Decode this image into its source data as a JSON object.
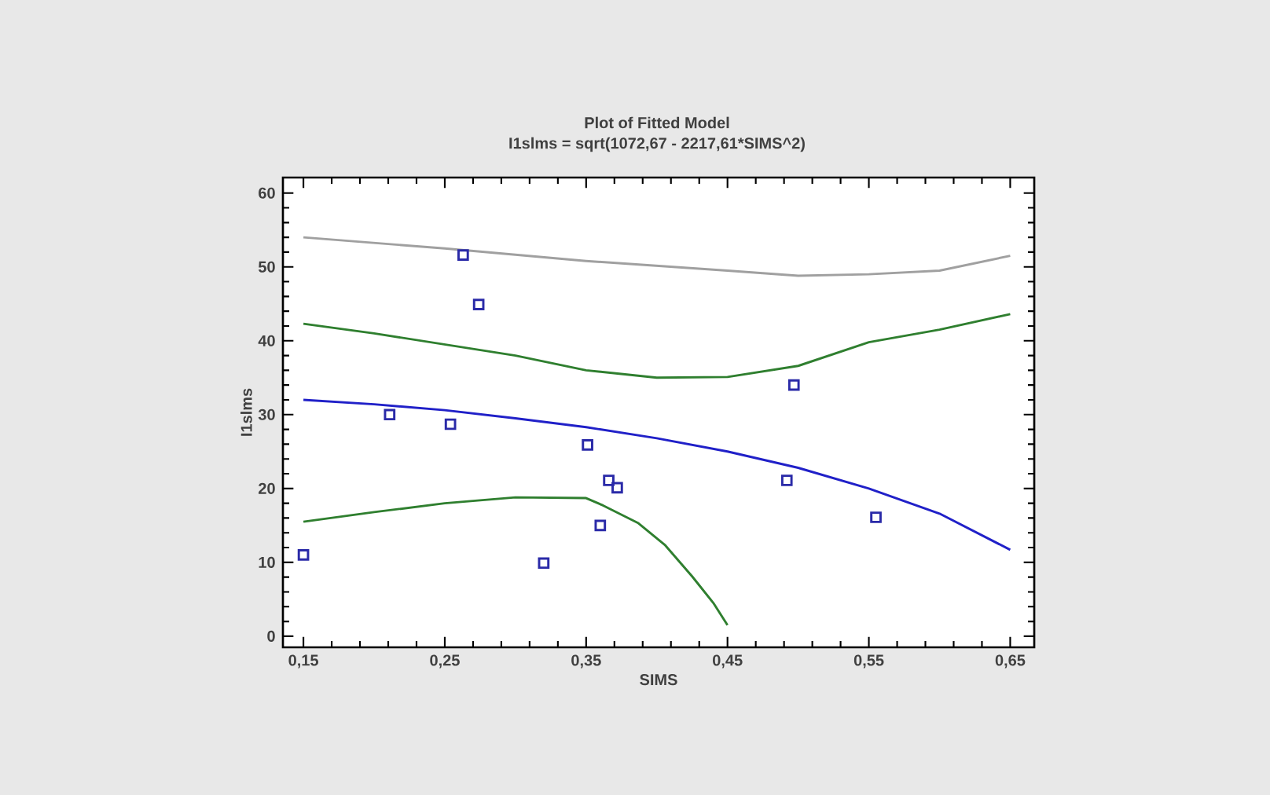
{
  "chart_data": {
    "type": "scatter",
    "title": "Plot of Fitted Model",
    "subtitle": "I1slms = sqrt(1072,67 - 2217,61*SIMS^2)",
    "xlabel": "SIMS",
    "ylabel": "I1slms",
    "xlim": [
      0.1355,
      0.667
    ],
    "ylim": [
      -1.5,
      62.1
    ],
    "xticks": [
      {
        "value": 0.15,
        "label": "0,15"
      },
      {
        "value": 0.25,
        "label": "0,25"
      },
      {
        "value": 0.35,
        "label": "0,35"
      },
      {
        "value": 0.45,
        "label": "0,45"
      },
      {
        "value": 0.55,
        "label": "0,55"
      },
      {
        "value": 0.65,
        "label": "0,65"
      }
    ],
    "yticks": [
      0,
      10,
      20,
      30,
      40,
      50,
      60
    ],
    "grid": false,
    "series": [
      {
        "marker": "square",
        "color": "#2a2aa8",
        "x": [
          0.15,
          0.211,
          0.254,
          0.263,
          0.274,
          0.32,
          0.351,
          0.36,
          0.366,
          0.372,
          0.492,
          0.497,
          0.555
        ],
        "values": [
          11.0,
          30.0,
          28.7,
          51.6,
          44.9,
          9.9,
          25.9,
          15.0,
          21.1,
          20.1,
          21.1,
          34.0,
          16.1
        ]
      },
      {
        "type": "line",
        "color": "#2020c8",
        "x": [
          0.15,
          0.2,
          0.25,
          0.3,
          0.35,
          0.4,
          0.45,
          0.5,
          0.55,
          0.6,
          0.65
        ],
        "values": [
          32.0,
          31.4,
          30.6,
          29.5,
          28.3,
          26.8,
          25.0,
          22.8,
          20.0,
          16.6,
          11.7
        ]
      },
      {
        "type": "line",
        "color": "#2f7f2f",
        "x": [
          0.15,
          0.2,
          0.25,
          0.3,
          0.35,
          0.4,
          0.45,
          0.5,
          0.55,
          0.6,
          0.65
        ],
        "values": [
          42.3,
          41.0,
          39.5,
          38.0,
          36.0,
          35.0,
          35.1,
          36.6,
          39.8,
          41.5,
          43.6
        ]
      },
      {
        "type": "line",
        "color": "#2f7f2f",
        "x": [
          0.15,
          0.2,
          0.25,
          0.3,
          0.35,
          0.362,
          0.387,
          0.406,
          0.425,
          0.44,
          0.45
        ],
        "values": [
          15.5,
          16.8,
          18.0,
          18.8,
          18.7,
          17.7,
          15.3,
          12.3,
          8.1,
          4.5,
          1.5
        ]
      },
      {
        "type": "line",
        "color": "#a0a0a0",
        "x": [
          0.15,
          0.25,
          0.35,
          0.45,
          0.5,
          0.55,
          0.6,
          0.65
        ],
        "values": [
          54.0,
          52.5,
          50.8,
          49.5,
          48.8,
          49.0,
          49.5,
          51.5
        ]
      }
    ]
  }
}
